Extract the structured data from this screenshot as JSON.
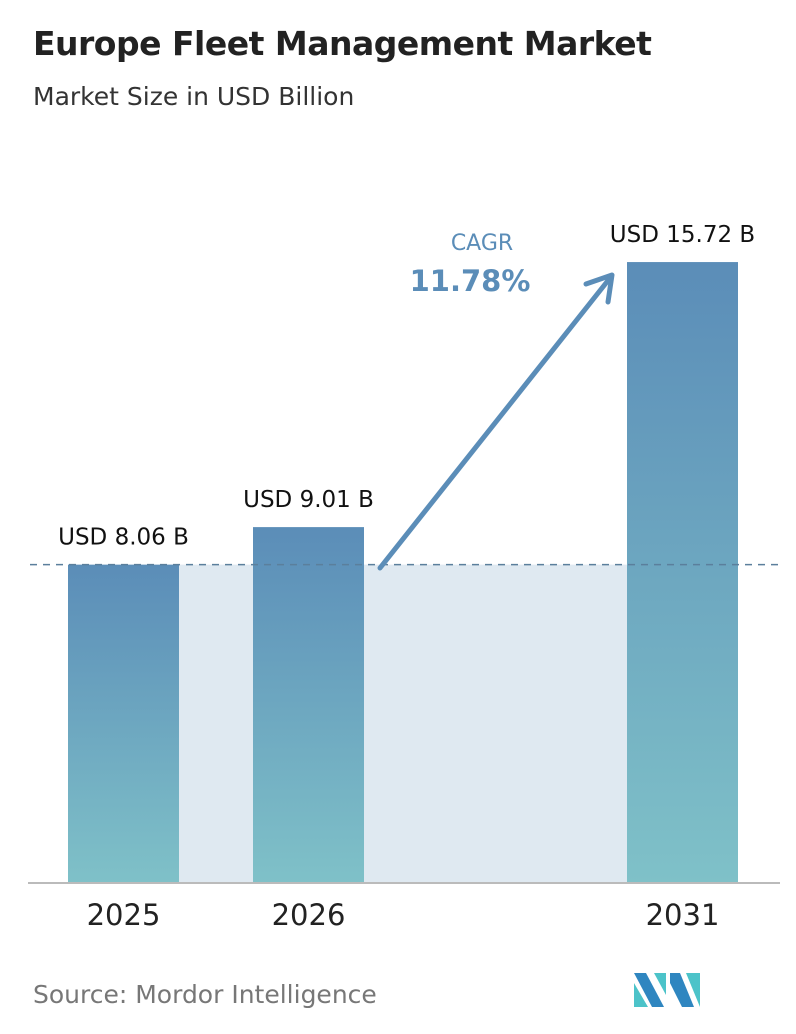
{
  "chart_data": {
    "type": "bar",
    "title": "Europe Fleet Management Market",
    "subtitle": "Market Size in USD Billion",
    "categories": [
      "2025",
      "2026",
      "2031"
    ],
    "values": [
      8.06,
      9.01,
      15.72
    ],
    "data_labels": [
      "USD 8.06 B",
      "USD 9.01 B",
      "USD 15.72 B"
    ],
    "annotation": {
      "label": "CAGR",
      "value": "11.78%"
    },
    "ylim": [
      0,
      16
    ],
    "grid": false,
    "colors": {
      "bar_top": "#5b8db8",
      "bar_bottom": "#7fc1c8",
      "shade": "#dfe9f1",
      "arrow": "#5b8db8",
      "cagr": "#5b8db8"
    }
  },
  "source": "Source:  Mordor Intelligence",
  "logo": "Mordor Intelligence"
}
